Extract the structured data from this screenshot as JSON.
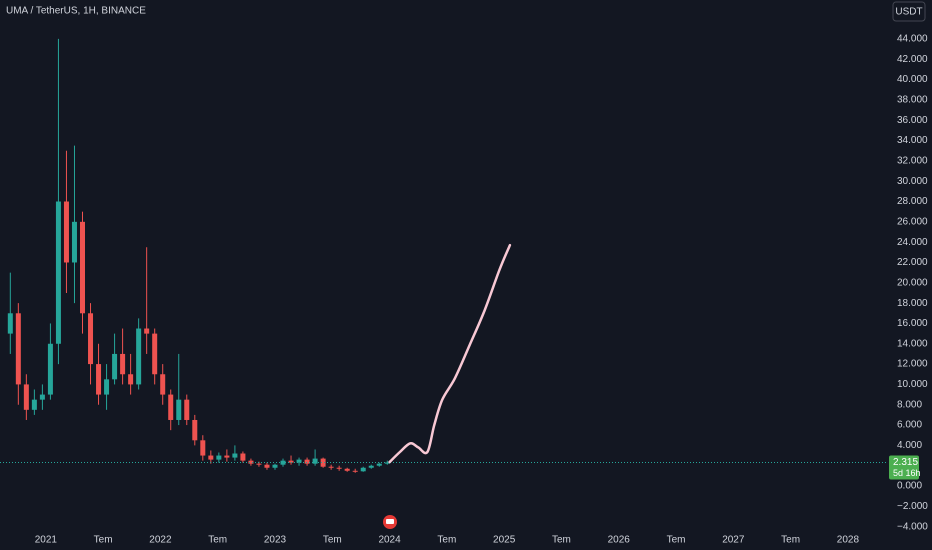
{
  "chart_data": {
    "type": "candlestick",
    "title": "UMA / TetherUS, 1H, BINANCE",
    "currency": "USDT",
    "up_color": "#26a69a",
    "down_color": "#ef5350",
    "grid": false,
    "x": [
      2020.69,
      2020.76,
      2020.83,
      2020.9,
      2020.97,
      2021.04,
      2021.11,
      2021.18,
      2021.25,
      2021.32,
      2021.39,
      2021.46,
      2021.53,
      2021.6,
      2021.67,
      2021.74,
      2021.81,
      2021.88,
      2021.95,
      2022.02,
      2022.09,
      2022.16,
      2022.23,
      2022.3,
      2022.37,
      2022.44,
      2022.51,
      2022.58,
      2022.65,
      2022.72,
      2022.79,
      2022.86,
      2022.93,
      2023.0,
      2023.07,
      2023.14,
      2023.21,
      2023.28,
      2023.35,
      2023.42,
      2023.49,
      2023.56,
      2023.63,
      2023.7,
      2023.77,
      2023.84,
      2023.91,
      2023.98
    ],
    "open": [
      15,
      17,
      10,
      7.5,
      8.5,
      9,
      14,
      28,
      22,
      26,
      17,
      12,
      9,
      10.5,
      13,
      11,
      10,
      15.5,
      15,
      11,
      9,
      6.5,
      8.5,
      6.5,
      4.5,
      3,
      2.6,
      3,
      2.8,
      3.2,
      2.5,
      2.2,
      2.1,
      1.8,
      2.1,
      2.5,
      2.3,
      2.6,
      2.2,
      2.7,
      1.9,
      1.8,
      1.7,
      1.5,
      1.45,
      1.8,
      2,
      2.2
    ],
    "high": [
      21,
      18,
      11,
      9.5,
      10,
      16,
      44,
      33,
      33.5,
      27,
      18,
      14,
      12,
      15,
      15.5,
      13,
      16.5,
      23.5,
      15.5,
      12,
      9.5,
      13,
      9,
      7,
      5,
      3.5,
      3.3,
      3.6,
      4,
      3.4,
      2.7,
      2.4,
      2.3,
      2.2,
      2.7,
      3,
      2.8,
      2.8,
      3.6,
      2.8,
      2.1,
      2,
      1.8,
      1.7,
      1.9,
      2.1,
      2.3,
      2.5
    ],
    "low": [
      13,
      8,
      6.5,
      7,
      7.5,
      8.5,
      12,
      19,
      18,
      15,
      10,
      8,
      7.5,
      10,
      10,
      9,
      9.5,
      13,
      10,
      8,
      5.5,
      6,
      6,
      4,
      2.5,
      2.2,
      2.3,
      2.4,
      2.5,
      2.3,
      2,
      1.9,
      1.6,
      1.6,
      1.9,
      2.1,
      2,
      2,
      2,
      1.8,
      1.6,
      1.5,
      1.4,
      1.3,
      1.4,
      1.7,
      1.9,
      2.1
    ],
    "close": [
      17,
      10,
      7.5,
      8.5,
      9,
      14,
      28,
      22,
      26,
      17,
      12,
      9,
      10.5,
      13,
      11,
      10,
      15.5,
      15,
      11,
      9,
      6.5,
      8.5,
      6.5,
      4.5,
      3,
      2.6,
      3,
      2.8,
      3.2,
      2.5,
      2.2,
      2.1,
      1.8,
      2.1,
      2.5,
      2.3,
      2.6,
      2.2,
      2.7,
      1.9,
      1.8,
      1.7,
      1.5,
      1.45,
      1.8,
      2,
      2.2,
      2.315
    ],
    "last_price": 2.315,
    "countdown": "5d 16h",
    "drawing": {
      "color": "#f8c8d4",
      "x": [
        2024.0,
        2024.09,
        2024.18,
        2024.25,
        2024.33,
        2024.39,
        2024.46,
        2024.57,
        2024.7,
        2024.83,
        2024.96,
        2025.05
      ],
      "values": [
        2.36,
        3.35,
        4.2,
        3.8,
        3.35,
        6,
        8.5,
        10.6,
        13.9,
        17.3,
        21.3,
        23.7
      ]
    },
    "xlim": [
      2020.6,
      2028.35
    ],
    "ylim": [
      -4.13,
      47.83
    ],
    "xticks": [
      2021,
      {
        "value": 2021.5,
        "label": "Tem"
      },
      2022,
      {
        "value": 2022.5,
        "label": "Tem"
      },
      2023,
      {
        "value": 2023.5,
        "label": "Tem"
      },
      2024,
      {
        "value": 2024.5,
        "label": "Tem"
      },
      2025,
      {
        "value": 2025.5,
        "label": "Tem"
      },
      2026,
      {
        "value": 2026.5,
        "label": "Tem"
      },
      2027,
      {
        "value": 2027.5,
        "label": "Tem"
      },
      2028
    ],
    "yticks": [
      {
        "value": -4,
        "label": "−4.000"
      },
      {
        "value": -2,
        "label": "−2.000"
      },
      {
        "value": 0,
        "label": "0.000"
      },
      {
        "value": 4,
        "label": "4.000"
      },
      {
        "value": 6,
        "label": "6.000"
      },
      {
        "value": 8,
        "label": "8.000"
      },
      {
        "value": 10,
        "label": "10.000"
      },
      {
        "value": 12,
        "label": "12.000"
      },
      {
        "value": 14,
        "label": "14.000"
      },
      {
        "value": 16,
        "label": "16.000"
      },
      {
        "value": 18,
        "label": "18.000"
      },
      {
        "value": 20,
        "label": "20.000"
      },
      {
        "value": 22,
        "label": "22.000"
      },
      {
        "value": 24,
        "label": "24.000"
      },
      {
        "value": 26,
        "label": "26.000"
      },
      {
        "value": 28,
        "label": "28.000"
      },
      {
        "value": 30,
        "label": "30.000"
      },
      {
        "value": 32,
        "label": "32.000"
      },
      {
        "value": 34,
        "label": "34.000"
      },
      {
        "value": 36,
        "label": "36.000"
      },
      {
        "value": 38,
        "label": "38.000"
      },
      {
        "value": 40,
        "label": "40.000"
      },
      {
        "value": 42,
        "label": "42.000"
      },
      {
        "value": 44,
        "label": "44.000"
      }
    ]
  }
}
